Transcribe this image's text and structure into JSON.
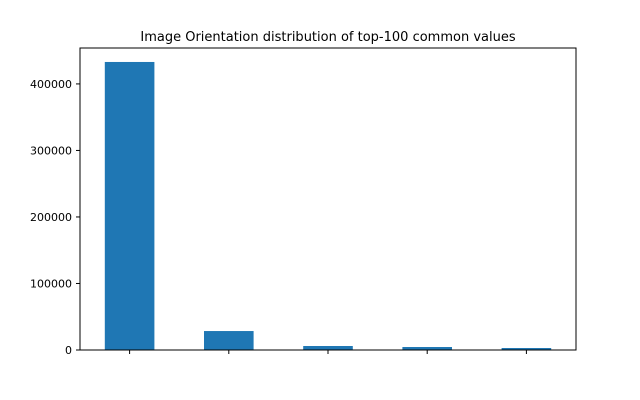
{
  "chart_data": {
    "type": "bar",
    "title": "Image Orientation distribution of top-100 common values",
    "xlabel": "",
    "ylabel": "",
    "categories": [
      "",
      "",
      "",
      "",
      ""
    ],
    "values": [
      433000,
      28500,
      6000,
      4500,
      3000
    ],
    "ylim": [
      0,
      454000
    ],
    "yticks": [
      0,
      100000,
      200000,
      300000,
      400000
    ],
    "ytick_labels": [
      "0",
      "100000",
      "200000",
      "300000",
      "400000"
    ],
    "grid": false,
    "legend": "none",
    "bar_color": "#1f77b4"
  }
}
